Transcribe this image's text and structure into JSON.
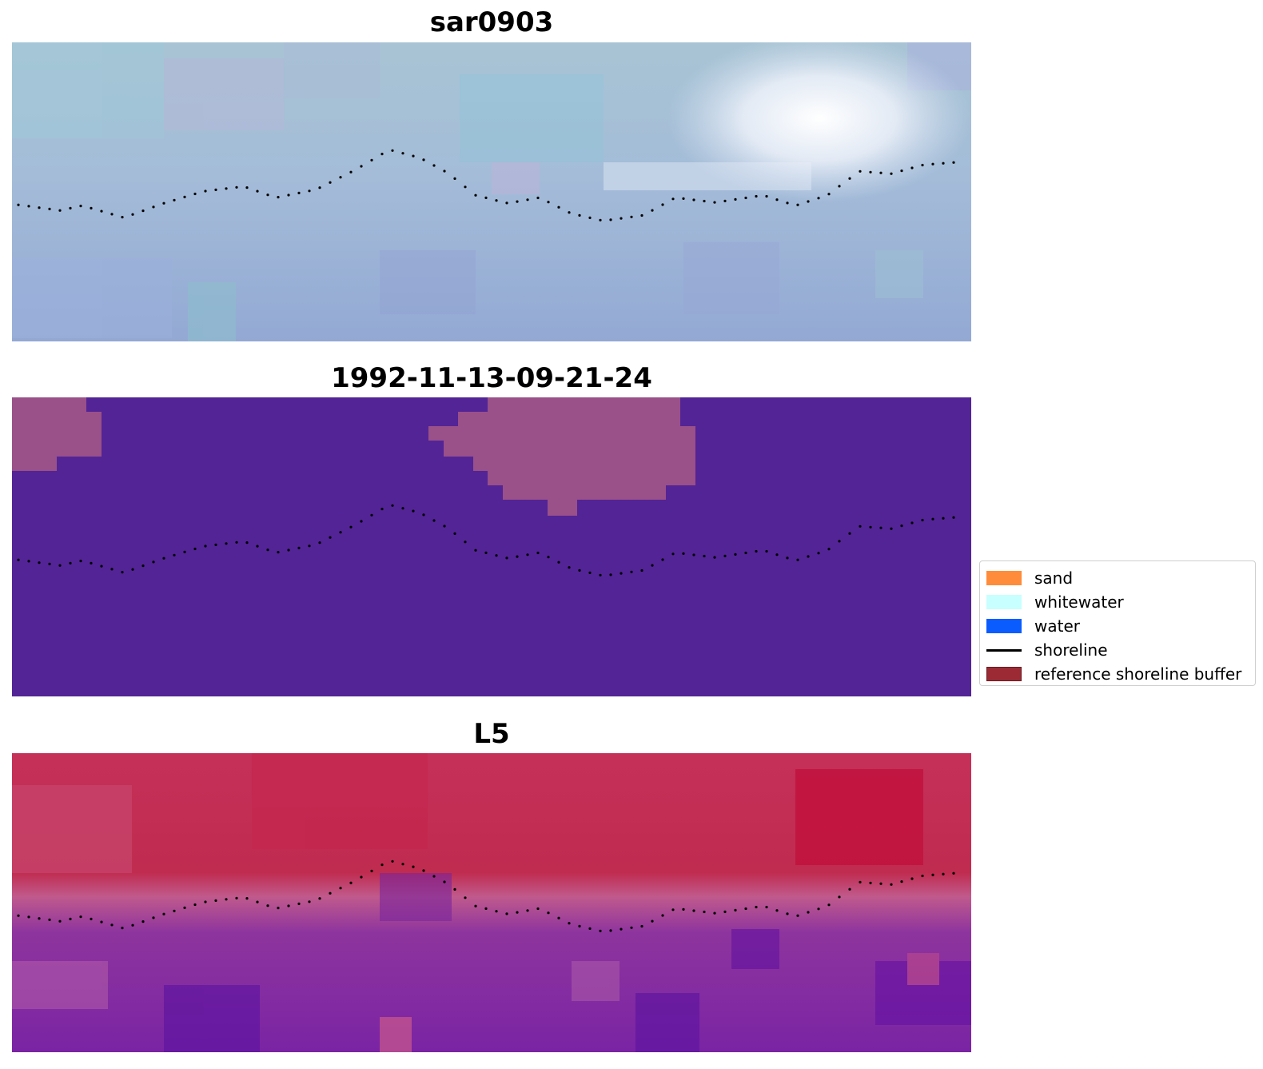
{
  "panels": [
    {
      "title": "sar0903"
    },
    {
      "title": "1992-11-13-09-21-24"
    },
    {
      "title": "L5"
    }
  ],
  "legend": {
    "items": [
      {
        "label": "sand",
        "kind": "patch",
        "color": "#ff8c3a"
      },
      {
        "label": "whitewater",
        "kind": "patch",
        "color": "#c8ffff"
      },
      {
        "label": "water",
        "kind": "patch",
        "color": "#0a5cff"
      },
      {
        "label": "shoreline",
        "kind": "line",
        "color": "#000000"
      },
      {
        "label": "reference shoreline buffer",
        "kind": "patch",
        "color": "#9c2a34"
      }
    ]
  }
}
